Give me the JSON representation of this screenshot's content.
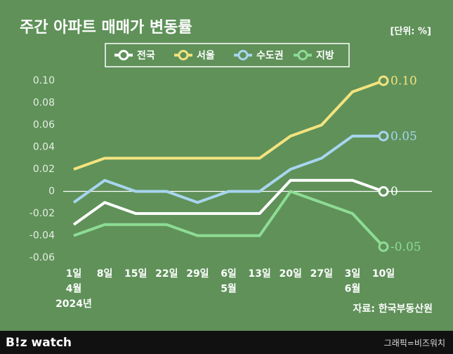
{
  "chart_data": {
    "type": "line",
    "title": "주간 아파트 매매가 변동률",
    "unit": "[단위: %]",
    "source": "자료: 한국부동산원",
    "credit": "그래픽=비즈워치",
    "logo": "B!z watch",
    "categories": [
      [
        "1일",
        "4월",
        "2024년"
      ],
      [
        "8일"
      ],
      [
        "15일"
      ],
      [
        "22일"
      ],
      [
        "29일"
      ],
      [
        "6일",
        "5월"
      ],
      [
        "13일"
      ],
      [
        "20일"
      ],
      [
        "27일"
      ],
      [
        "3일",
        "6월"
      ],
      [
        "10일"
      ]
    ],
    "series": [
      {
        "name": "전국",
        "color": "#ffffff",
        "values": [
          -0.03,
          -0.01,
          -0.02,
          -0.02,
          -0.02,
          -0.02,
          -0.02,
          0.01,
          0.01,
          0.01,
          0
        ],
        "value_labels": [
          null,
          null,
          null,
          null,
          null,
          null,
          null,
          null,
          null,
          null,
          "0"
        ]
      },
      {
        "name": "서울",
        "color": "#f3e37f",
        "values": [
          0.02,
          0.03,
          0.03,
          0.03,
          0.03,
          0.03,
          0.03,
          0.05,
          0.06,
          0.09,
          0.1
        ],
        "value_labels": [
          null,
          null,
          null,
          null,
          null,
          null,
          null,
          null,
          null,
          null,
          "0.10"
        ]
      },
      {
        "name": "수도권",
        "color": "#a8d5ee",
        "values": [
          -0.01,
          0.01,
          0,
          0,
          -0.01,
          0,
          0,
          0.02,
          0.03,
          0.05,
          0.05
        ],
        "value_labels": [
          null,
          null,
          null,
          null,
          null,
          null,
          null,
          null,
          null,
          null,
          "0.05"
        ]
      },
      {
        "name": "지방",
        "color": "#8edc94",
        "values": [
          -0.04,
          -0.03,
          -0.03,
          -0.03,
          -0.04,
          -0.04,
          -0.04,
          0,
          -0.01,
          -0.02,
          -0.05
        ],
        "value_labels": [
          null,
          null,
          null,
          null,
          null,
          null,
          null,
          null,
          null,
          null,
          "-0.05"
        ]
      }
    ],
    "ylim": [
      -0.06,
      0.1
    ],
    "yticks": [
      -0.06,
      -0.04,
      -0.02,
      0,
      0.02,
      0.04,
      0.06,
      0.08,
      {
        "value": 0.1,
        "label": "0.10"
      }
    ],
    "zero_line": true,
    "legend": "top"
  }
}
